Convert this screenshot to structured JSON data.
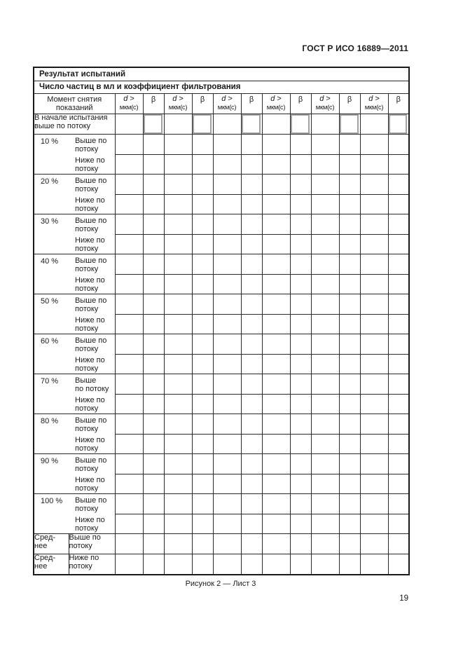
{
  "header_text": "ГОСТ Р ИСО 16889—2011",
  "page_number": "19",
  "caption": "Рисунок 2 — Лист 3",
  "colors": {
    "line": "#2a2a2a",
    "beta_box_border": "#a2a2a2"
  },
  "table": {
    "title": "Результат испытаний",
    "subtitle": "Число частиц в мл и коэффициент фильтрования",
    "columns": {
      "moment": [
        "Момент снятия",
        "показаний"
      ],
      "d": "d",
      "d_op": " >",
      "d_sub": "мкм(с)",
      "beta": "β",
      "pair_count": 6
    },
    "rows": {
      "start": [
        "В начале испытания",
        "выше по потоку"
      ],
      "groups": [
        {
          "pct": "10 %",
          "up": [
            "Выше по",
            "потоку"
          ],
          "down": [
            "Ниже по",
            "потоку"
          ]
        },
        {
          "pct": "20 %",
          "up": [
            "Выше по",
            "потоку"
          ],
          "down": [
            "Ниже по",
            "потоку"
          ]
        },
        {
          "pct": "30 %",
          "up": [
            "Выше по",
            "потоку"
          ],
          "down": [
            "Ниже по",
            "потоку"
          ]
        },
        {
          "pct": "40 %",
          "up": [
            "Выше по",
            "потоку"
          ],
          "down": [
            "Ниже по",
            "потоку"
          ]
        },
        {
          "pct": "50 %",
          "up": [
            "Выше по",
            "потоку"
          ],
          "down": [
            "Ниже по",
            "потоку"
          ]
        },
        {
          "pct": "60 %",
          "up": [
            "Выше по",
            "потоку"
          ],
          "down": [
            "Ниже по",
            "потоку"
          ]
        },
        {
          "pct": "70 %",
          "up": [
            "Выше",
            "по потоку"
          ],
          "down": [
            "Ниже по",
            "потоку"
          ]
        },
        {
          "pct": "80 %",
          "up": [
            "Выше по",
            "потоку"
          ],
          "down": [
            "Ниже по",
            "потоку"
          ]
        },
        {
          "pct": "90 %",
          "up": [
            "Выше по",
            "потоку"
          ],
          "down": [
            "Ниже по",
            "потоку"
          ]
        },
        {
          "pct": "100 %",
          "up": [
            "Выше по",
            "потоку"
          ],
          "down": [
            "Ниже по",
            "потоку"
          ]
        }
      ],
      "averages": [
        {
          "label": [
            "Сред-",
            "нее"
          ],
          "dir": [
            "Выше по",
            "потоку"
          ]
        },
        {
          "label": [
            "Сред-",
            "нее"
          ],
          "dir": [
            "Ниже по",
            "потоку"
          ]
        }
      ]
    }
  }
}
